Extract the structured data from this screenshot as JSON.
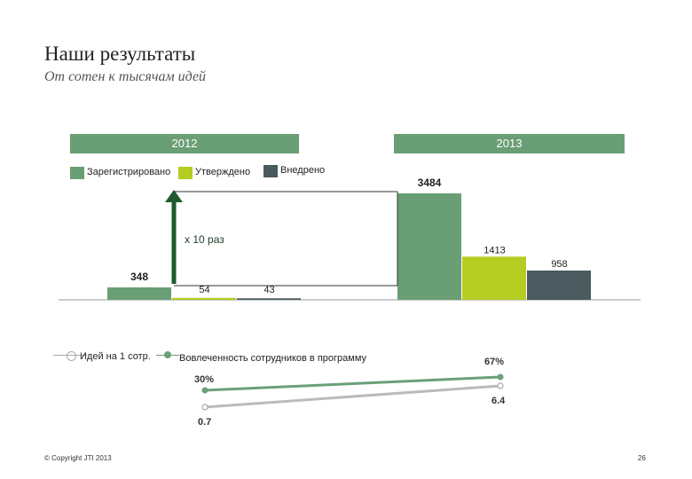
{
  "header": {
    "title": "Наши результаты",
    "subtitle": "От сотен к тысячам идей"
  },
  "years": [
    "2012",
    "2013"
  ],
  "colors": {
    "registered": "#6a9e74",
    "approved": "#b5cc22",
    "implemented": "#4a5a5e",
    "line_employees": "#6aa07a",
    "line_ideas": "#bbbbbb"
  },
  "chart_data": [
    {
      "type": "bar",
      "categories": [
        "2012",
        "2013"
      ],
      "series": [
        {
          "name": "Зарегистрировано",
          "values": [
            348,
            3484
          ]
        },
        {
          "name": "Утверждено",
          "values": [
            54,
            1413
          ]
        },
        {
          "name": "Внедрено",
          "values": [
            43,
            958
          ]
        }
      ],
      "annotation": "x 10 раз",
      "legend_position": "top-left"
    },
    {
      "type": "line",
      "categories": [
        "2012",
        "2013"
      ],
      "series": [
        {
          "name": "Идей на 1 сотр.",
          "values": [
            0.7,
            6.4
          ],
          "labels": [
            "0.7",
            "6.4"
          ]
        },
        {
          "name": "Вовлеченность сотрудников в программу",
          "values": [
            30,
            67
          ],
          "labels": [
            "30%",
            "67%"
          ]
        }
      ],
      "legend_position": "top"
    }
  ],
  "footer": {
    "copyright": "© Copyright JTI 2013",
    "page_number": "26"
  }
}
